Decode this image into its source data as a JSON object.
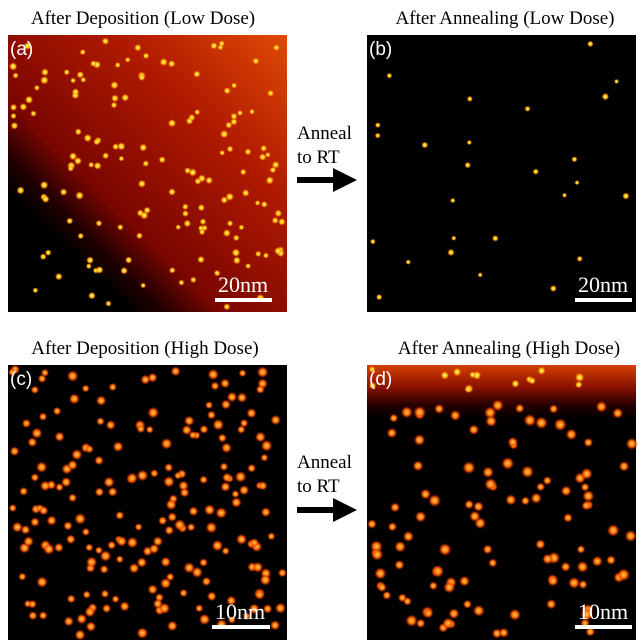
{
  "panels": [
    {
      "title": "After Deposition (Low Dose)",
      "label": "(a)",
      "scale_bar": "20nm"
    },
    {
      "title": "After Annealing (Low Dose)",
      "label": "(b)",
      "scale_bar": "20nm"
    },
    {
      "title": "After Deposition (High Dose)",
      "label": "(c)",
      "scale_bar": "10nm"
    },
    {
      "title": "After Annealing (High Dose)",
      "label": "(d)",
      "scale_bar": "10nm"
    }
  ],
  "arrows": [
    {
      "line1": "Anneal",
      "line2": "to RT"
    },
    {
      "line1": "Anneal",
      "line2": "to RT"
    }
  ]
}
